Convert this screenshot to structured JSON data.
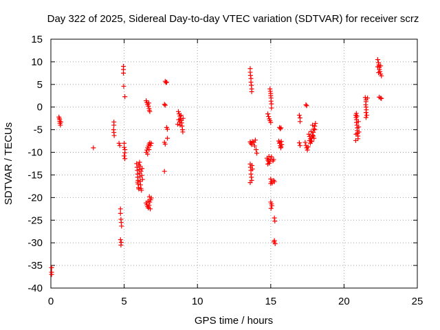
{
  "chart_data": {
    "type": "scatter",
    "title": "Day 322 of 2025, Sidereal Day-to-day VTEC variation (SDTVAR) for receiver scrz",
    "xlabel": "GPS time / hours",
    "ylabel": "SDTVAR / TECUs",
    "xlim": [
      0,
      25
    ],
    "ylim": [
      -40,
      15
    ],
    "x_ticks": [
      "0",
      "5",
      "10",
      "15",
      "20",
      "25"
    ],
    "y_ticks": [
      "15",
      "10",
      "5",
      "0",
      "-5",
      "-10",
      "-15",
      "-20",
      "-25",
      "-30",
      "-35",
      "-40"
    ],
    "grid": true,
    "marker": "+",
    "color": "#ff0000",
    "series": [
      {
        "name": "SDTVAR",
        "points": [
          [
            0.05,
            -35.5
          ],
          [
            0.05,
            -36.5
          ],
          [
            0.05,
            -37.0
          ],
          [
            0.55,
            -2.2
          ],
          [
            0.6,
            -2.8
          ],
          [
            0.6,
            -3.2
          ],
          [
            0.62,
            -3.6
          ],
          [
            0.65,
            -4.0
          ],
          [
            0.58,
            -2.5
          ],
          [
            0.68,
            -3.3
          ],
          [
            2.9,
            -9.0
          ],
          [
            4.3,
            -3.3
          ],
          [
            4.3,
            -4.0
          ],
          [
            4.28,
            -5.0
          ],
          [
            4.3,
            -5.6
          ],
          [
            4.32,
            -6.3
          ],
          [
            4.65,
            -8.0
          ],
          [
            4.7,
            -8.5
          ],
          [
            4.75,
            -22.5
          ],
          [
            4.75,
            -23.5
          ],
          [
            4.78,
            -24.8
          ],
          [
            4.8,
            -25.5
          ],
          [
            4.82,
            -26.3
          ],
          [
            4.75,
            -29.3
          ],
          [
            4.8,
            -29.9
          ],
          [
            4.78,
            -30.5
          ],
          [
            4.95,
            9.0
          ],
          [
            4.95,
            8.3
          ],
          [
            4.95,
            7.5
          ],
          [
            4.97,
            4.6
          ],
          [
            5.05,
            2.3
          ],
          [
            5.0,
            -8.0
          ],
          [
            5.0,
            -8.9
          ],
          [
            5.05,
            -9.4
          ],
          [
            5.05,
            -10.1
          ],
          [
            5.0,
            -10.8
          ],
          [
            5.05,
            -11.4
          ],
          [
            5.85,
            -12.5
          ],
          [
            5.88,
            -13.3
          ],
          [
            5.9,
            -14.0
          ],
          [
            5.92,
            -14.8
          ],
          [
            5.92,
            -15.5
          ],
          [
            5.95,
            -16.2
          ],
          [
            5.95,
            -17.0
          ],
          [
            5.98,
            -17.8
          ],
          [
            6.0,
            -12.8
          ],
          [
            6.02,
            -13.8
          ],
          [
            6.05,
            -14.6
          ],
          [
            6.08,
            -15.4
          ],
          [
            6.1,
            -16.4
          ],
          [
            6.12,
            -17.2
          ],
          [
            6.15,
            -18.0
          ],
          [
            6.18,
            -18.4
          ],
          [
            6.05,
            -12.2
          ],
          [
            6.1,
            -13.1
          ],
          [
            6.15,
            -14.2
          ],
          [
            6.2,
            -15.1
          ],
          [
            5.92,
            -16.6
          ],
          [
            6.0,
            -18.1
          ],
          [
            6.22,
            -13.6
          ],
          [
            6.25,
            -16.0
          ],
          [
            6.5,
            1.4
          ],
          [
            6.55,
            1.0
          ],
          [
            6.6,
            0.6
          ],
          [
            6.65,
            0.2
          ],
          [
            6.7,
            -0.3
          ],
          [
            6.72,
            -0.7
          ],
          [
            6.75,
            -1.0
          ],
          [
            6.68,
            0.9
          ],
          [
            6.5,
            -10.0
          ],
          [
            6.55,
            -9.5
          ],
          [
            6.6,
            -9.0
          ],
          [
            6.65,
            -8.6
          ],
          [
            6.7,
            -8.2
          ],
          [
            6.75,
            -7.9
          ],
          [
            6.8,
            -8.5
          ],
          [
            6.6,
            -10.4
          ],
          [
            6.7,
            -9.4
          ],
          [
            6.85,
            -8.0
          ],
          [
            6.5,
            -21.2
          ],
          [
            6.55,
            -21.6
          ],
          [
            6.6,
            -22.0
          ],
          [
            6.65,
            -22.3
          ],
          [
            6.7,
            -21.7
          ],
          [
            6.75,
            -21.0
          ],
          [
            6.8,
            -20.5
          ],
          [
            6.85,
            -20.1
          ],
          [
            6.62,
            -20.8
          ],
          [
            6.72,
            -19.8
          ],
          [
            6.78,
            -22.5
          ],
          [
            7.8,
            5.7
          ],
          [
            7.85,
            5.4
          ],
          [
            7.9,
            5.5
          ],
          [
            7.75,
            0.6
          ],
          [
            7.8,
            0.4
          ],
          [
            7.75,
            -7.8
          ],
          [
            7.8,
            -8.2
          ],
          [
            7.9,
            -4.5
          ],
          [
            7.95,
            -4.9
          ],
          [
            7.95,
            -6.9
          ],
          [
            7.75,
            -14.2
          ],
          [
            8.7,
            -1.0
          ],
          [
            8.75,
            -1.5
          ],
          [
            8.8,
            -2.0
          ],
          [
            8.85,
            -2.6
          ],
          [
            8.9,
            -3.0
          ],
          [
            8.92,
            -3.5
          ],
          [
            8.95,
            -4.2
          ],
          [
            8.98,
            -5.0
          ],
          [
            9.0,
            -5.5
          ],
          [
            8.78,
            -3.3
          ],
          [
            8.82,
            -4.0
          ],
          [
            8.65,
            -3.8
          ],
          [
            8.88,
            -1.8
          ],
          [
            9.02,
            -2.5
          ],
          [
            8.72,
            -2.8
          ],
          [
            13.6,
            8.5
          ],
          [
            13.6,
            7.7
          ],
          [
            13.62,
            7.0
          ],
          [
            13.65,
            6.3
          ],
          [
            13.65,
            5.5
          ],
          [
            13.68,
            4.8
          ],
          [
            13.7,
            4.0
          ],
          [
            13.7,
            3.4
          ],
          [
            13.6,
            -7.7
          ],
          [
            13.65,
            -8.0
          ],
          [
            13.7,
            -8.3
          ],
          [
            13.75,
            -7.6
          ],
          [
            13.85,
            -7.8
          ],
          [
            13.9,
            -8.6
          ],
          [
            13.95,
            -7.3
          ],
          [
            14.0,
            -9.4
          ],
          [
            14.05,
            -10.2
          ],
          [
            13.6,
            -12.6
          ],
          [
            13.62,
            -13.3
          ],
          [
            13.65,
            -14.0
          ],
          [
            13.65,
            -14.8
          ],
          [
            13.68,
            -15.5
          ],
          [
            13.7,
            -16.2
          ],
          [
            13.6,
            -16.7
          ],
          [
            13.72,
            -12.9
          ],
          [
            13.75,
            -13.7
          ],
          [
            14.8,
            -1.5
          ],
          [
            14.85,
            -2.1
          ],
          [
            14.9,
            -2.6
          ],
          [
            14.95,
            -3.0
          ],
          [
            15.0,
            -3.4
          ],
          [
            14.95,
            4.0
          ],
          [
            14.97,
            3.5
          ],
          [
            15.0,
            3.0
          ],
          [
            15.0,
            2.5
          ],
          [
            15.02,
            2.0
          ],
          [
            15.02,
            1.3
          ],
          [
            15.05,
            0.7
          ],
          [
            15.05,
            -0.2
          ],
          [
            14.75,
            -11.3
          ],
          [
            14.8,
            -11.7
          ],
          [
            14.85,
            -12.0
          ],
          [
            14.9,
            -12.4
          ],
          [
            14.95,
            -12.0
          ],
          [
            15.0,
            -11.5
          ],
          [
            15.05,
            -11.0
          ],
          [
            14.8,
            -12.6
          ],
          [
            14.88,
            -10.9
          ],
          [
            15.0,
            -15.9
          ],
          [
            15.05,
            -16.5
          ],
          [
            15.1,
            -16.8
          ],
          [
            15.2,
            -16.2
          ],
          [
            15.25,
            -16.5
          ],
          [
            15.0,
            -16.9
          ],
          [
            15.15,
            -11.9
          ],
          [
            15.2,
            -11.6
          ],
          [
            15.0,
            -21.0
          ],
          [
            15.05,
            -21.4
          ],
          [
            15.08,
            -21.8
          ],
          [
            15.02,
            -22.4
          ],
          [
            15.25,
            -24.5
          ],
          [
            15.28,
            -25.2
          ],
          [
            15.25,
            -29.5
          ],
          [
            15.3,
            -30.2
          ],
          [
            15.22,
            -29.8
          ],
          [
            15.6,
            -4.5
          ],
          [
            15.65,
            -4.8
          ],
          [
            15.7,
            -4.6
          ],
          [
            15.55,
            -7.5
          ],
          [
            15.6,
            -8.0
          ],
          [
            15.65,
            -8.5
          ],
          [
            15.7,
            -8.8
          ],
          [
            15.75,
            -8.3
          ],
          [
            15.62,
            -7.8
          ],
          [
            15.68,
            -9.0
          ],
          [
            15.72,
            -7.6
          ],
          [
            16.95,
            -1.8
          ],
          [
            17.0,
            -2.4
          ],
          [
            17.0,
            -3.2
          ],
          [
            16.95,
            -7.9
          ],
          [
            17.0,
            -8.5
          ],
          [
            17.4,
            0.5
          ],
          [
            17.45,
            0.3
          ],
          [
            17.35,
            -7.8
          ],
          [
            17.4,
            -8.5
          ],
          [
            17.45,
            -9.0
          ],
          [
            17.5,
            -9.5
          ],
          [
            17.55,
            -8.8
          ],
          [
            17.6,
            -6.0
          ],
          [
            17.65,
            -6.5
          ],
          [
            17.7,
            -7.0
          ],
          [
            17.75,
            -7.5
          ],
          [
            17.8,
            -6.8
          ],
          [
            17.85,
            -6.2
          ],
          [
            17.9,
            -5.6
          ],
          [
            17.95,
            -4.8
          ],
          [
            18.0,
            -4.2
          ],
          [
            17.7,
            -8.0
          ],
          [
            17.8,
            -7.6
          ],
          [
            17.9,
            -6.4
          ],
          [
            18.0,
            -5.0
          ],
          [
            17.75,
            -5.4
          ],
          [
            17.85,
            -4.0
          ],
          [
            18.05,
            -3.6
          ],
          [
            17.65,
            -7.4
          ],
          [
            17.95,
            -6.9
          ],
          [
            20.8,
            -1.8
          ],
          [
            20.82,
            -2.3
          ],
          [
            20.85,
            -2.8
          ],
          [
            20.85,
            -3.4
          ],
          [
            20.88,
            -4.0
          ],
          [
            20.9,
            -4.6
          ],
          [
            20.9,
            -5.2
          ],
          [
            20.92,
            -5.8
          ],
          [
            20.95,
            -6.4
          ],
          [
            20.95,
            -7.0
          ],
          [
            20.8,
            -7.4
          ],
          [
            20.82,
            -6.0
          ],
          [
            20.88,
            -2.0
          ],
          [
            20.98,
            -3.2
          ],
          [
            21.0,
            -4.4
          ],
          [
            21.02,
            -5.5
          ],
          [
            20.84,
            -1.4
          ],
          [
            21.45,
            2.1
          ],
          [
            21.5,
            1.6
          ],
          [
            21.5,
            1.2
          ],
          [
            21.48,
            0.5
          ],
          [
            21.5,
            0.0
          ],
          [
            21.52,
            -0.6
          ],
          [
            21.5,
            -1.2
          ],
          [
            21.55,
            -1.8
          ],
          [
            21.5,
            -2.3
          ],
          [
            21.6,
            2.0
          ],
          [
            22.3,
            10.5
          ],
          [
            22.35,
            9.8
          ],
          [
            22.38,
            9.3
          ],
          [
            22.4,
            8.8
          ],
          [
            22.42,
            8.3
          ],
          [
            22.45,
            7.8
          ],
          [
            22.5,
            7.3
          ],
          [
            22.55,
            6.9
          ],
          [
            22.3,
            8.9
          ],
          [
            22.5,
            9.1
          ],
          [
            22.35,
            7.6
          ],
          [
            22.4,
            2.2
          ],
          [
            22.5,
            2.0
          ],
          [
            22.55,
            1.9
          ]
        ]
      }
    ]
  }
}
